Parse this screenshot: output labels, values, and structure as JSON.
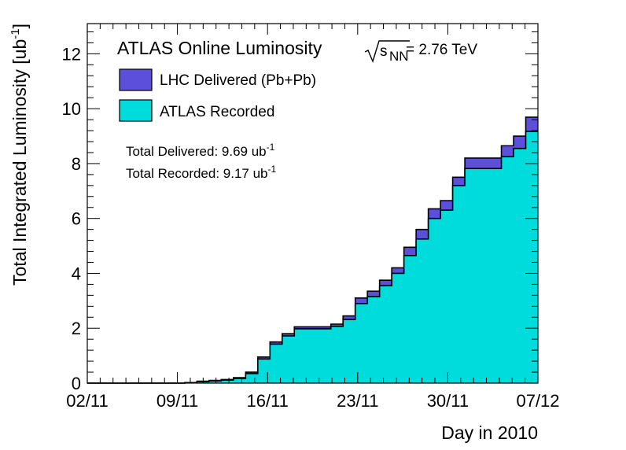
{
  "chart_data": {
    "type": "area",
    "style": "step",
    "title": "ATLAS Online Luminosity",
    "energy_label": {
      "var": "s",
      "sub": "NN",
      "value": "= 2.76 TeV"
    },
    "xlabel": "Day in 2010",
    "ylabel_main": "Total Integrated Luminosity [ub",
    "ylabel_sup": "-1",
    "ylabel_end": "]",
    "xlim": [
      0,
      35
    ],
    "ylim": [
      0,
      13.1
    ],
    "x_ticks": [
      {
        "value": 0,
        "label": "02/11"
      },
      {
        "value": 7,
        "label": "09/11"
      },
      {
        "value": 14,
        "label": "16/11"
      },
      {
        "value": 21,
        "label": "23/11"
      },
      {
        "value": 28,
        "label": "30/11"
      },
      {
        "value": 35,
        "label": "07/12"
      }
    ],
    "y_ticks": [
      0,
      2,
      4,
      6,
      8,
      10,
      12
    ],
    "series": [
      {
        "name": "LHC Delivered (Pb+Pb)",
        "color": "#5b4fdc",
        "values": [
          0,
          0,
          0,
          0,
          0,
          0,
          0,
          0,
          0.02,
          0.07,
          0.1,
          0.13,
          0.2,
          0.4,
          0.95,
          1.5,
          1.8,
          2.05,
          2.05,
          2.05,
          2.15,
          2.45,
          3.1,
          3.35,
          3.75,
          4.2,
          4.95,
          5.6,
          6.35,
          6.65,
          7.5,
          8.2,
          8.2,
          8.2,
          8.65,
          9.0,
          9.69
        ]
      },
      {
        "name": "ATLAS Recorded",
        "color": "#00dbdb",
        "values": [
          0,
          0,
          0,
          0,
          0,
          0,
          0,
          0,
          0.01,
          0.05,
          0.08,
          0.11,
          0.17,
          0.35,
          0.88,
          1.42,
          1.72,
          1.98,
          1.98,
          1.98,
          2.07,
          2.32,
          2.9,
          3.15,
          3.55,
          4.0,
          4.65,
          5.25,
          6.0,
          6.3,
          7.2,
          7.82,
          7.82,
          7.82,
          8.25,
          8.55,
          9.17
        ]
      }
    ],
    "annotations": [
      {
        "label": "Total Delivered: 9.69 ub",
        "sup": "-1"
      },
      {
        "label": "Total Recorded: 9.17 ub",
        "sup": "-1"
      }
    ],
    "legend_position": "top-left",
    "grid": false
  }
}
